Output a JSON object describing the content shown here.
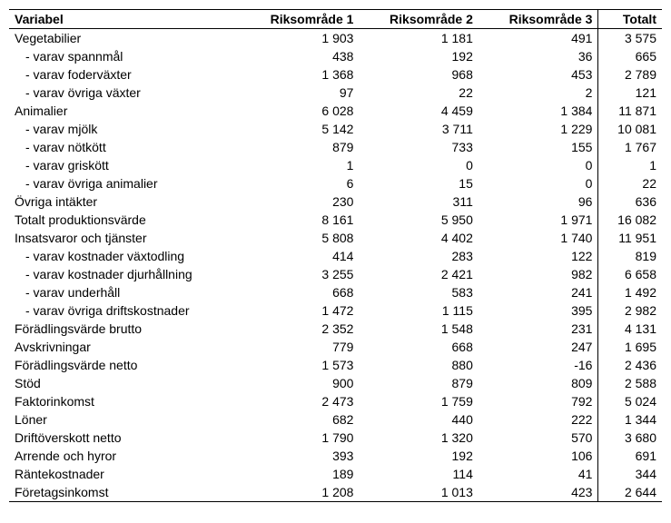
{
  "table": {
    "columns": [
      "Variabel",
      "Riksområde 1",
      "Riksområde 2",
      "Riksområde 3",
      "Totalt"
    ],
    "rows": [
      {
        "label": "Vegetabilier",
        "indent": false,
        "v1": "1 903",
        "v2": "1 181",
        "v3": "491",
        "tot": "3 575"
      },
      {
        "label": "- varav spannmål",
        "indent": true,
        "v1": "438",
        "v2": "192",
        "v3": "36",
        "tot": "665"
      },
      {
        "label": "- varav foderväxter",
        "indent": true,
        "v1": "1 368",
        "v2": "968",
        "v3": "453",
        "tot": "2 789"
      },
      {
        "label": "- varav övriga växter",
        "indent": true,
        "v1": "97",
        "v2": "22",
        "v3": "2",
        "tot": "121"
      },
      {
        "label": "Animalier",
        "indent": false,
        "v1": "6 028",
        "v2": "4 459",
        "v3": "1 384",
        "tot": "11 871"
      },
      {
        "label": "- varav mjölk",
        "indent": true,
        "v1": "5 142",
        "v2": "3 711",
        "v3": "1 229",
        "tot": "10 081"
      },
      {
        "label": "- varav nötkött",
        "indent": true,
        "v1": "879",
        "v2": "733",
        "v3": "155",
        "tot": "1 767"
      },
      {
        "label": "- varav griskött",
        "indent": true,
        "v1": "1",
        "v2": "0",
        "v3": "0",
        "tot": "1"
      },
      {
        "label": "- varav övriga animalier",
        "indent": true,
        "v1": "6",
        "v2": "15",
        "v3": "0",
        "tot": "22"
      },
      {
        "label": "Övriga intäkter",
        "indent": false,
        "v1": "230",
        "v2": "311",
        "v3": "96",
        "tot": "636"
      },
      {
        "label": "Totalt produktionsvärde",
        "indent": false,
        "v1": "8 161",
        "v2": "5 950",
        "v3": "1 971",
        "tot": "16 082"
      },
      {
        "label": "Insatsvaror och tjänster",
        "indent": false,
        "v1": "5 808",
        "v2": "4 402",
        "v3": "1 740",
        "tot": "11 951"
      },
      {
        "label": "- varav kostnader växtodling",
        "indent": true,
        "v1": "414",
        "v2": "283",
        "v3": "122",
        "tot": "819"
      },
      {
        "label": "- varav kostnader djurhållning",
        "indent": true,
        "v1": "3 255",
        "v2": "2 421",
        "v3": "982",
        "tot": "6 658"
      },
      {
        "label": "- varav underhåll",
        "indent": true,
        "v1": "668",
        "v2": "583",
        "v3": "241",
        "tot": "1 492"
      },
      {
        "label": "- varav övriga driftskostnader",
        "indent": true,
        "v1": "1 472",
        "v2": "1 115",
        "v3": "395",
        "tot": "2 982"
      },
      {
        "label": "Förädlingsvärde brutto",
        "indent": false,
        "v1": "2 352",
        "v2": "1 548",
        "v3": "231",
        "tot": "4 131"
      },
      {
        "label": "Avskrivningar",
        "indent": false,
        "v1": "779",
        "v2": "668",
        "v3": "247",
        "tot": "1 695"
      },
      {
        "label": "Förädlingsvärde netto",
        "indent": false,
        "v1": "1 573",
        "v2": "880",
        "v3": "-16",
        "tot": "2 436"
      },
      {
        "label": "Stöd",
        "indent": false,
        "v1": "900",
        "v2": "879",
        "v3": "809",
        "tot": "2 588"
      },
      {
        "label": "Faktorinkomst",
        "indent": false,
        "v1": "2 473",
        "v2": "1 759",
        "v3": "792",
        "tot": "5 024"
      },
      {
        "label": "Löner",
        "indent": false,
        "v1": "682",
        "v2": "440",
        "v3": "222",
        "tot": "1 344"
      },
      {
        "label": "Driftöverskott netto",
        "indent": false,
        "v1": "1 790",
        "v2": "1 320",
        "v3": "570",
        "tot": "3 680"
      },
      {
        "label": "Arrende och hyror",
        "indent": false,
        "v1": "393",
        "v2": "192",
        "v3": "106",
        "tot": "691"
      },
      {
        "label": "Räntekostnader",
        "indent": false,
        "v1": "189",
        "v2": "114",
        "v3": "41",
        "tot": "344"
      },
      {
        "label": "Företagsinkomst",
        "indent": false,
        "v1": "1 208",
        "v2": "1 013",
        "v3": "423",
        "tot": "2 644"
      }
    ]
  }
}
